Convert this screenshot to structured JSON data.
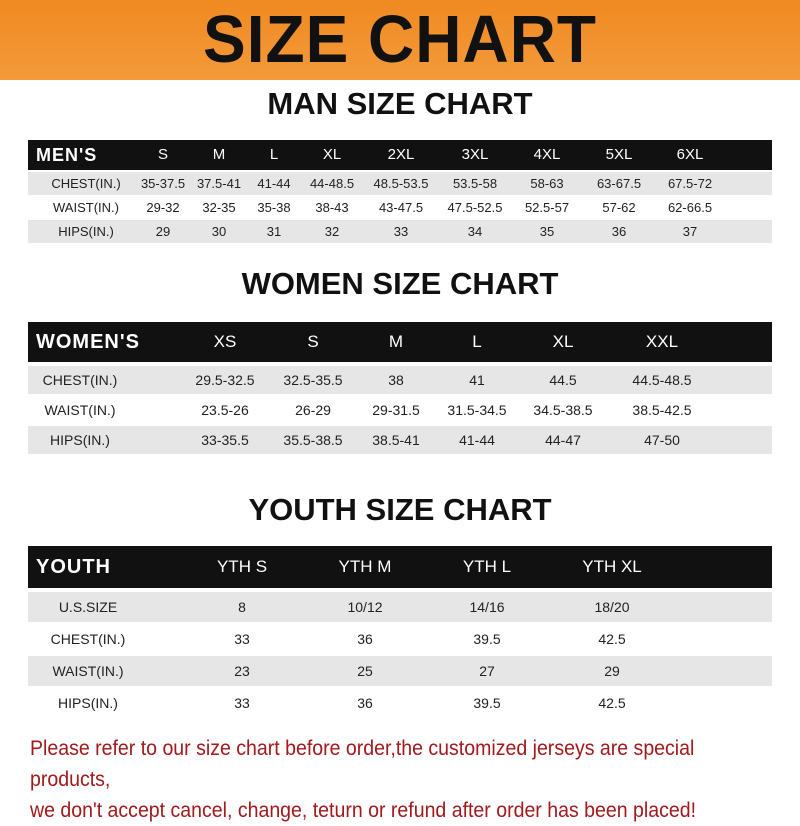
{
  "banner": {
    "title": "SIZE CHART",
    "color": "#f08a22"
  },
  "men": {
    "title": "MAN SIZE CHART",
    "header": [
      "MEN'S",
      "S",
      "M",
      "L",
      "XL",
      "2XL",
      "3XL",
      "4XL",
      "5XL",
      "6XL"
    ],
    "rows": [
      [
        "CHEST(IN.)",
        "35-37.5",
        "37.5-41",
        "41-44",
        "44-48.5",
        "48.5-53.5",
        "53.5-58",
        "58-63",
        "63-67.5",
        "67.5-72"
      ],
      [
        "WAIST(IN.)",
        "29-32",
        "32-35",
        "35-38",
        "38-43",
        "43-47.5",
        "47.5-52.5",
        "52.5-57",
        "57-62",
        "62-66.5"
      ],
      [
        "HIPS(IN.)",
        "29",
        "30",
        "31",
        "32",
        "33",
        "34",
        "35",
        "36",
        "37"
      ]
    ]
  },
  "women": {
    "title": "WOMEN SIZE CHART",
    "header": [
      "WOMEN'S",
      "XS",
      "S",
      "M",
      "L",
      "XL",
      "XXL"
    ],
    "rows": [
      [
        "CHEST(IN.)",
        "29.5-32.5",
        "32.5-35.5",
        "38",
        "41",
        "44.5",
        "44.5-48.5"
      ],
      [
        "WAIST(IN.)",
        "23.5-26",
        "26-29",
        "29-31.5",
        "31.5-34.5",
        "34.5-38.5",
        "38.5-42.5"
      ],
      [
        "HIPS(IN.)",
        "33-35.5",
        "35.5-38.5",
        "38.5-41",
        "41-44",
        "44-47",
        "47-50"
      ]
    ]
  },
  "youth": {
    "title": "YOUTH SIZE CHART",
    "header": [
      "YOUTH",
      "YTH S",
      "YTH M",
      "YTH L",
      "YTH XL"
    ],
    "rows": [
      [
        "U.S.SIZE",
        "8",
        "10/12",
        "14/16",
        "18/20"
      ],
      [
        "CHEST(IN.)",
        "33",
        "36",
        "39.5",
        "42.5"
      ],
      [
        "WAIST(IN.)",
        "23",
        "25",
        "27",
        "29"
      ],
      [
        "HIPS(IN.)",
        "33",
        "36",
        "39.5",
        "42.5"
      ]
    ]
  },
  "notice": {
    "line1": "Please refer to our size chart before order,the customized jerseys are special products,",
    "line2": "we don't accept cancel, change, teturn or refund after order has been placed!",
    "color": "#a3191c"
  }
}
